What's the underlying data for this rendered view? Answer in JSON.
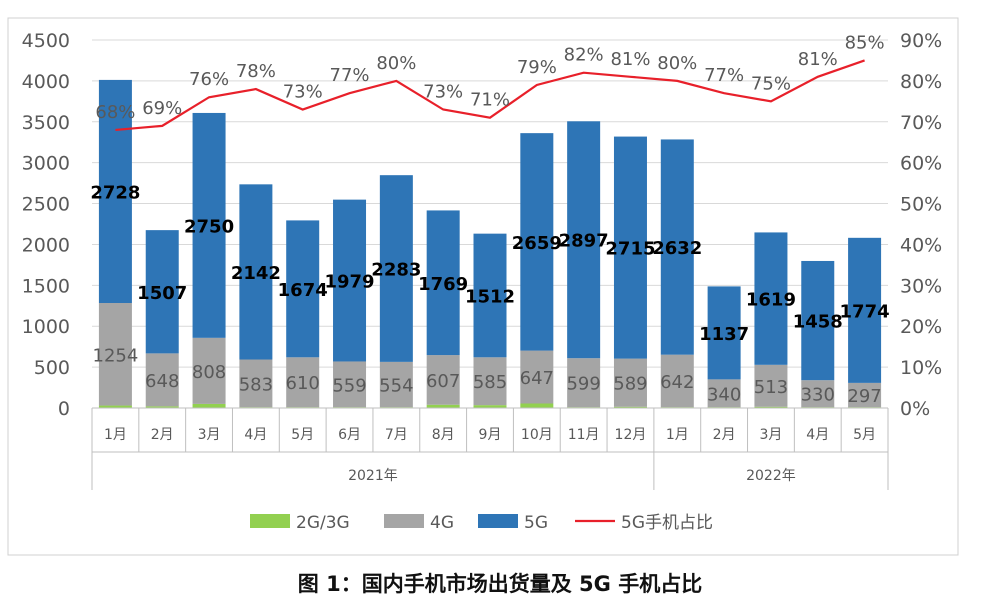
{
  "caption": "图 1：国内手机市场出货量及 5G 手机占比",
  "colors": {
    "g23": "#92d050",
    "g4": "#a5a5a5",
    "g5": "#2e75b6",
    "ratio": "#e8202a",
    "axis_text": "#595959",
    "grid": "#d9d9d9"
  },
  "chart_data": {
    "type": "bar",
    "stacked": true,
    "categories": [
      "1月",
      "2月",
      "3月",
      "4月",
      "5月",
      "6月",
      "7月",
      "8月",
      "9月",
      "10月",
      "11月",
      "12月",
      "1月",
      "2月",
      "3月",
      "4月",
      "5月"
    ],
    "year_groups": [
      {
        "label": "2021年",
        "count": 12
      },
      {
        "label": "2022年",
        "count": 5
      }
    ],
    "series": [
      {
        "name": "2G/3G",
        "values": [
          30,
          20,
          50,
          10,
          10,
          10,
          10,
          40,
          35,
          55,
          10,
          15,
          10,
          10,
          15,
          10,
          10
        ]
      },
      {
        "name": "4G",
        "values": [
          1254,
          648,
          808,
          583,
          610,
          559,
          554,
          607,
          585,
          647,
          599,
          589,
          642,
          340,
          513,
          330,
          297
        ]
      },
      {
        "name": "5G",
        "values": [
          2728,
          1507,
          2750,
          2142,
          1674,
          1979,
          2283,
          1769,
          1512,
          2659,
          2897,
          2715,
          2632,
          1137,
          1619,
          1458,
          1774
        ]
      },
      {
        "name": "5G手机占比",
        "type": "line",
        "axis": "right",
        "values": [
          68,
          69,
          76,
          78,
          73,
          77,
          80,
          73,
          71,
          79,
          82,
          81,
          80,
          77,
          75,
          81,
          85
        ],
        "labels": [
          "68%",
          "69%",
          "76%",
          "78%",
          "73%",
          "77%",
          "80%",
          "73%",
          "71%",
          "79%",
          "82%",
          "81%",
          "80%",
          "77%",
          "75%",
          "81%",
          "85%"
        ]
      }
    ],
    "y_left": {
      "min": 0,
      "max": 4500,
      "ticks": [
        "0",
        "500",
        "1000",
        "1500",
        "2000",
        "2500",
        "3000",
        "3500",
        "4000",
        "4500"
      ]
    },
    "y_right": {
      "min": 0,
      "max": 90,
      "ticks": [
        "0%",
        "10%",
        "20%",
        "30%",
        "40%",
        "50%",
        "60%",
        "70%",
        "80%",
        "90%"
      ]
    },
    "grid": true,
    "legend": "bottom"
  }
}
